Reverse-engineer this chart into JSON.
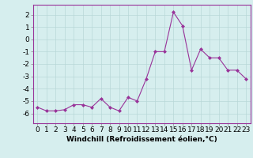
{
  "x": [
    0,
    1,
    2,
    3,
    4,
    5,
    6,
    7,
    8,
    9,
    10,
    11,
    12,
    13,
    14,
    15,
    16,
    17,
    18,
    19,
    20,
    21,
    22,
    23
  ],
  "y": [
    -5.5,
    -5.8,
    -5.8,
    -5.7,
    -5.3,
    -5.3,
    -5.5,
    -4.8,
    -5.5,
    -5.8,
    -4.7,
    -5.0,
    -3.2,
    -1.0,
    -1.0,
    2.2,
    1.1,
    -2.5,
    -0.8,
    -1.5,
    -1.5,
    -2.5,
    -2.5,
    -3.2
  ],
  "color": "#993399",
  "bg_color": "#d6eeee",
  "grid_color": "#b8d8d8",
  "xlabel": "Windchill (Refroidissement éolien,°C)",
  "ylim": [
    -6.8,
    2.8
  ],
  "xlim": [
    -0.5,
    23.5
  ],
  "yticks": [
    -6,
    -5,
    -4,
    -3,
    -2,
    -1,
    0,
    1,
    2
  ],
  "xticks": [
    0,
    1,
    2,
    3,
    4,
    5,
    6,
    7,
    8,
    9,
    10,
    11,
    12,
    13,
    14,
    15,
    16,
    17,
    18,
    19,
    20,
    21,
    22,
    23
  ],
  "xlabel_fontsize": 6.5,
  "tick_fontsize": 6.5,
  "marker": "D",
  "marker_size": 2.0,
  "linewidth": 0.8
}
